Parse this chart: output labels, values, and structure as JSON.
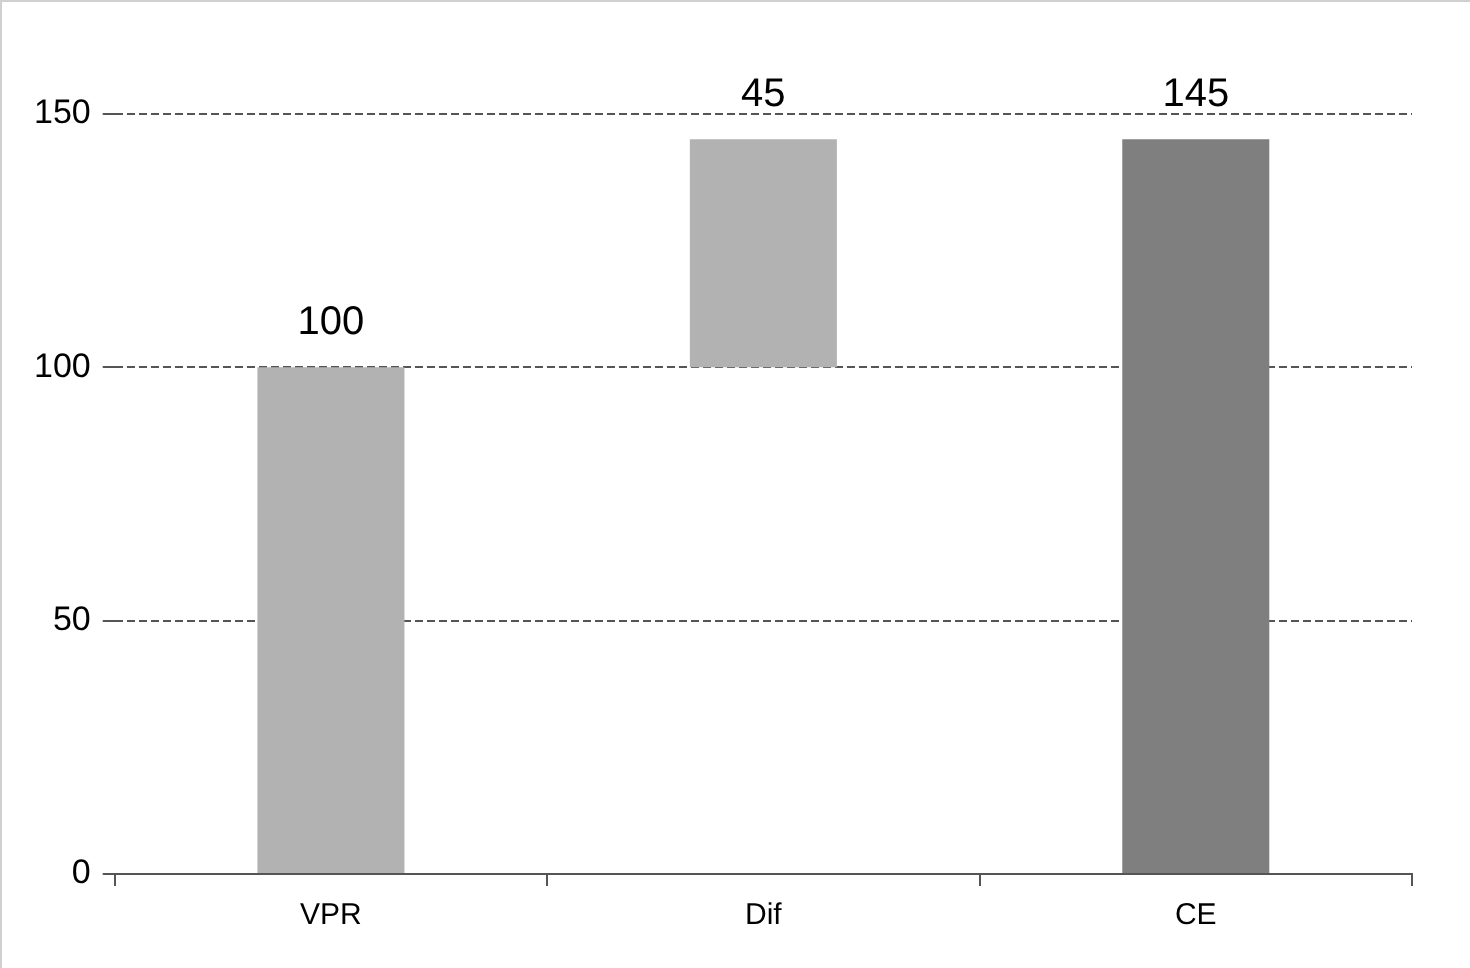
{
  "chart_data": {
    "type": "bar",
    "categories": [
      "VPR",
      "Dif",
      "CE"
    ],
    "values": [
      100,
      45,
      145
    ],
    "base": [
      0,
      100,
      0
    ],
    "colors": [
      "#b2b2b2",
      "#b2b2b2",
      "#7f7f7f"
    ],
    "ylim": [
      0,
      150
    ],
    "yticks": [
      0,
      50,
      100,
      150
    ],
    "grid": "y",
    "line_style": "dashed",
    "data_labels": true,
    "legend": false
  }
}
